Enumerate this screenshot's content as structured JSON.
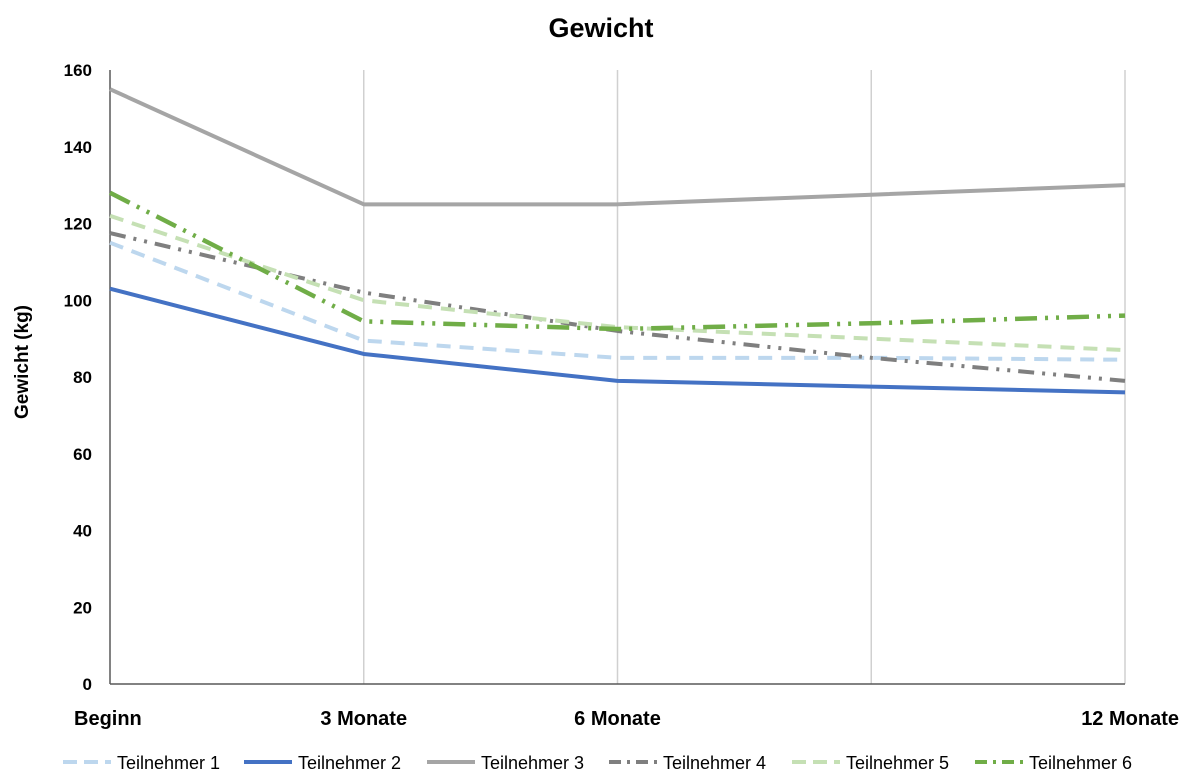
{
  "chart_data": {
    "type": "line",
    "title": "Gewicht",
    "xlabel": "",
    "ylabel": "Gewicht  (kg)",
    "ylim": [
      0,
      160
    ],
    "yticks": [
      0,
      20,
      40,
      60,
      80,
      100,
      120,
      140,
      160
    ],
    "categories": [
      "Beginn",
      "3 Monate",
      "6 Monate",
      "",
      "12 Monate"
    ],
    "grid": {
      "vertical": true,
      "horizontal": false
    },
    "legend_position": "bottom",
    "series": [
      {
        "name": "Teilnehmer 1",
        "values": [
          115,
          89.5,
          85,
          85,
          84.5
        ],
        "color": "#BDD7EE",
        "style": "dash"
      },
      {
        "name": "Teilnehmer 2",
        "values": [
          103,
          86,
          79,
          77.5,
          76
        ],
        "color": "#4472C4",
        "style": "solid"
      },
      {
        "name": "Teilnehmer 3",
        "values": [
          155,
          125,
          125,
          127.5,
          130
        ],
        "color": "#A5A5A5",
        "style": "solid"
      },
      {
        "name": "Teilnehmer 4",
        "values": [
          117.5,
          102,
          92,
          85,
          79
        ],
        "color": "#7F7F7F",
        "style": "dashdotdot"
      },
      {
        "name": "Teilnehmer 5",
        "values": [
          122,
          100,
          93,
          90,
          87
        ],
        "color": "#C5E0B4",
        "style": "dash"
      },
      {
        "name": "Teilnehmer 6",
        "values": [
          128,
          94.5,
          92.5,
          94,
          96
        ],
        "color": "#70AD47",
        "style": "longdashdotdot"
      }
    ]
  }
}
